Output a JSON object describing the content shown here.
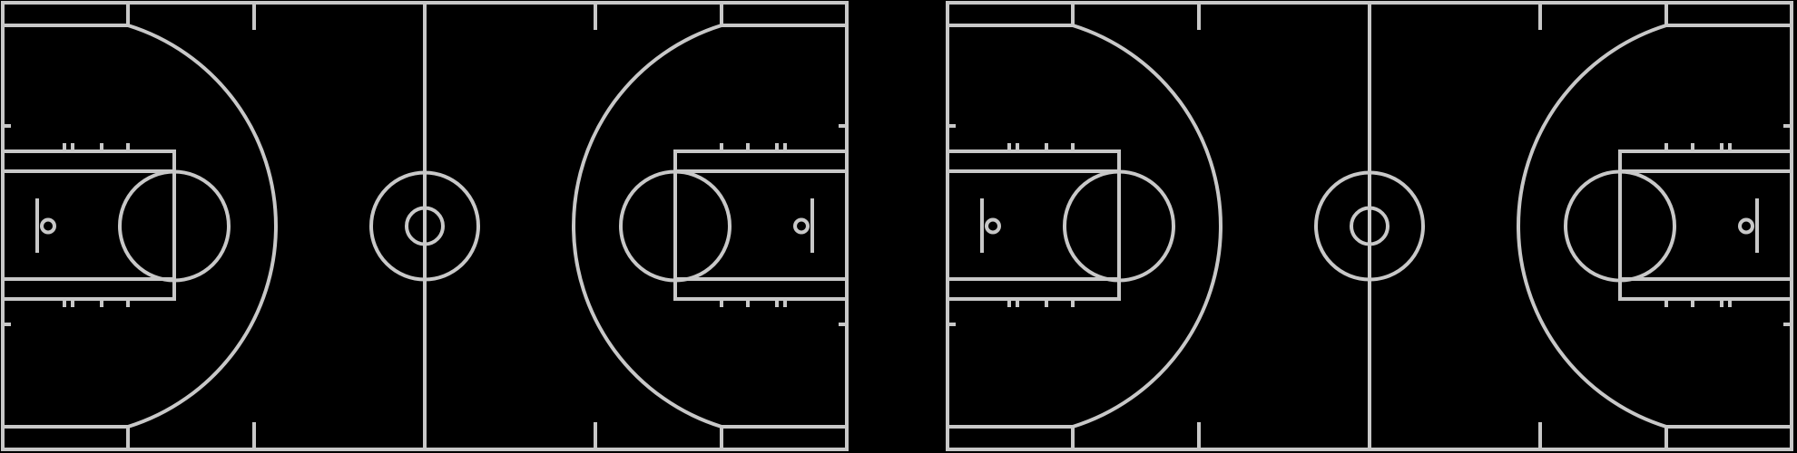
{
  "diagram": {
    "background_color": "#000000",
    "line_color": "#c8c8c8",
    "courts": [
      {
        "name": "court-left"
      },
      {
        "name": "court-right"
      }
    ]
  }
}
